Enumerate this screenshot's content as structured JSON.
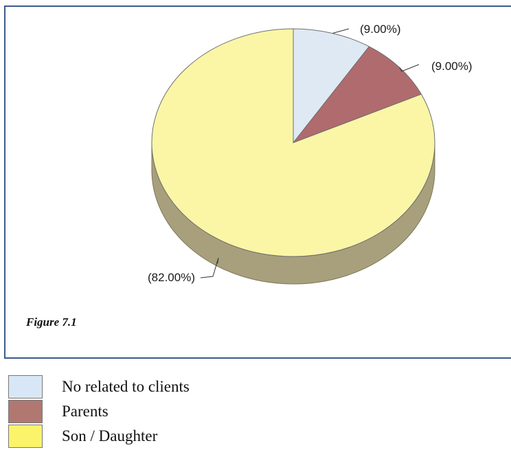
{
  "chart_data": {
    "type": "pie",
    "categories": [
      "No related to clients",
      "Parents",
      "Son / Daughter"
    ],
    "values": [
      9.0,
      9.0,
      82.0
    ],
    "data_labels": [
      "(9.00%)",
      "(9.00%)",
      "(82.00%)"
    ],
    "colors": [
      "#dfe9f4",
      "#b06b6e",
      "#fbf6a6"
    ],
    "side_color": "#a8a07c",
    "legend_colors": [
      "#d8e7f5",
      "#b07870",
      "#fbf36a"
    ],
    "legend_placement": "bottom-left",
    "title": "",
    "caption": "Figure 7.1"
  }
}
